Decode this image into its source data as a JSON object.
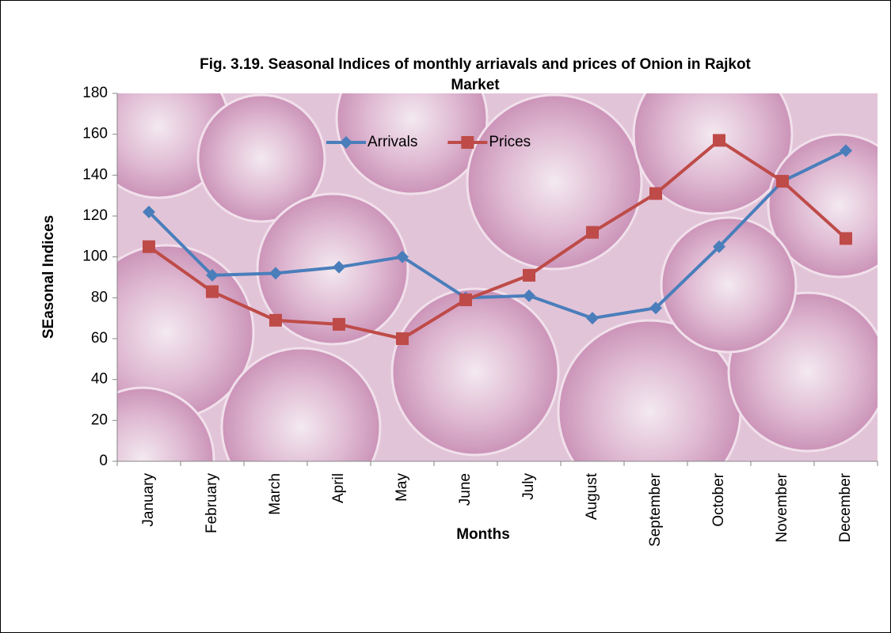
{
  "chart_data": {
    "type": "line",
    "title": "Fig. 3.19. Seasonal Indices of monthly arriavals  and prices of Onion in Rajkot",
    "title_line2": "Market",
    "x_label": "Months",
    "y_label": "SEasonal Indices",
    "categories": [
      "January",
      "February",
      "March",
      "April",
      "May",
      "June",
      "July",
      "August",
      "September",
      "October",
      "November",
      "December"
    ],
    "series": [
      {
        "name": "Arrivals",
        "color": "#4a7ebb",
        "marker": "diamond",
        "values": [
          122,
          91,
          92,
          95,
          100,
          80,
          81,
          70,
          75,
          105,
          137,
          152
        ]
      },
      {
        "name": "Prices",
        "color": "#be4b48",
        "marker": "square",
        "values": [
          105,
          83,
          69,
          67,
          60,
          79,
          91,
          112,
          131,
          157,
          137,
          109
        ]
      }
    ],
    "ylim": [
      0,
      180
    ],
    "yticks": [
      0,
      20,
      40,
      60,
      80,
      100,
      120,
      140,
      160,
      180
    ],
    "legend": "top"
  }
}
